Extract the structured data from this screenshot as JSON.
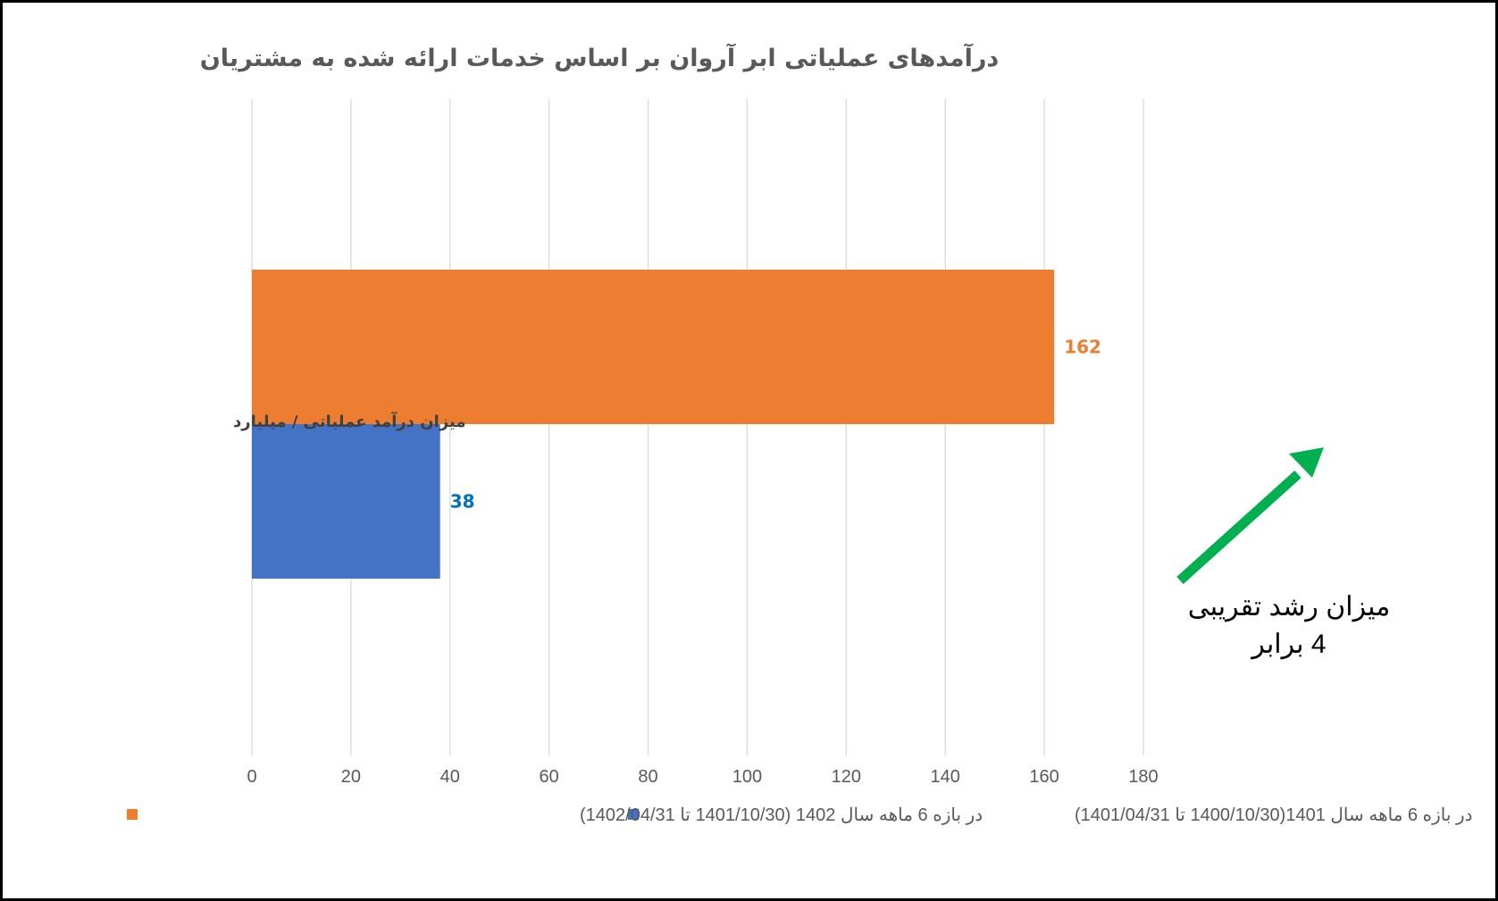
{
  "chart_data": {
    "type": "bar",
    "orientation": "horizontal",
    "title": "درآمدهای عملیاتی ابر آروان بر اساس خدمات ارائه شده به مشتریان",
    "categories": [
      "میزان درآمد عملیاتی / میلیارد"
    ],
    "series": [
      {
        "name": "در بازه 6 ماهه سال 1402 (1401/10/30 تا 1402/04/31)",
        "values": [
          162
        ],
        "color": "#ED7D31",
        "label_color": "#ED7D31"
      },
      {
        "name": "در بازه 6 ماهه سال 1401(1400/10/30 تا 1401/04/31)",
        "values": [
          38
        ],
        "color": "#4472C4",
        "label_color": "#0070C0"
      }
    ],
    "xlim": [
      0,
      180
    ],
    "xticks": [
      0,
      20,
      40,
      60,
      80,
      100,
      120,
      140,
      160,
      180
    ],
    "grid": true,
    "legend_position": "bottom",
    "annotation": {
      "lines": [
        "میزان رشد تقریبی",
        "4 برابر"
      ],
      "arrow_color": "#00B050"
    }
  }
}
